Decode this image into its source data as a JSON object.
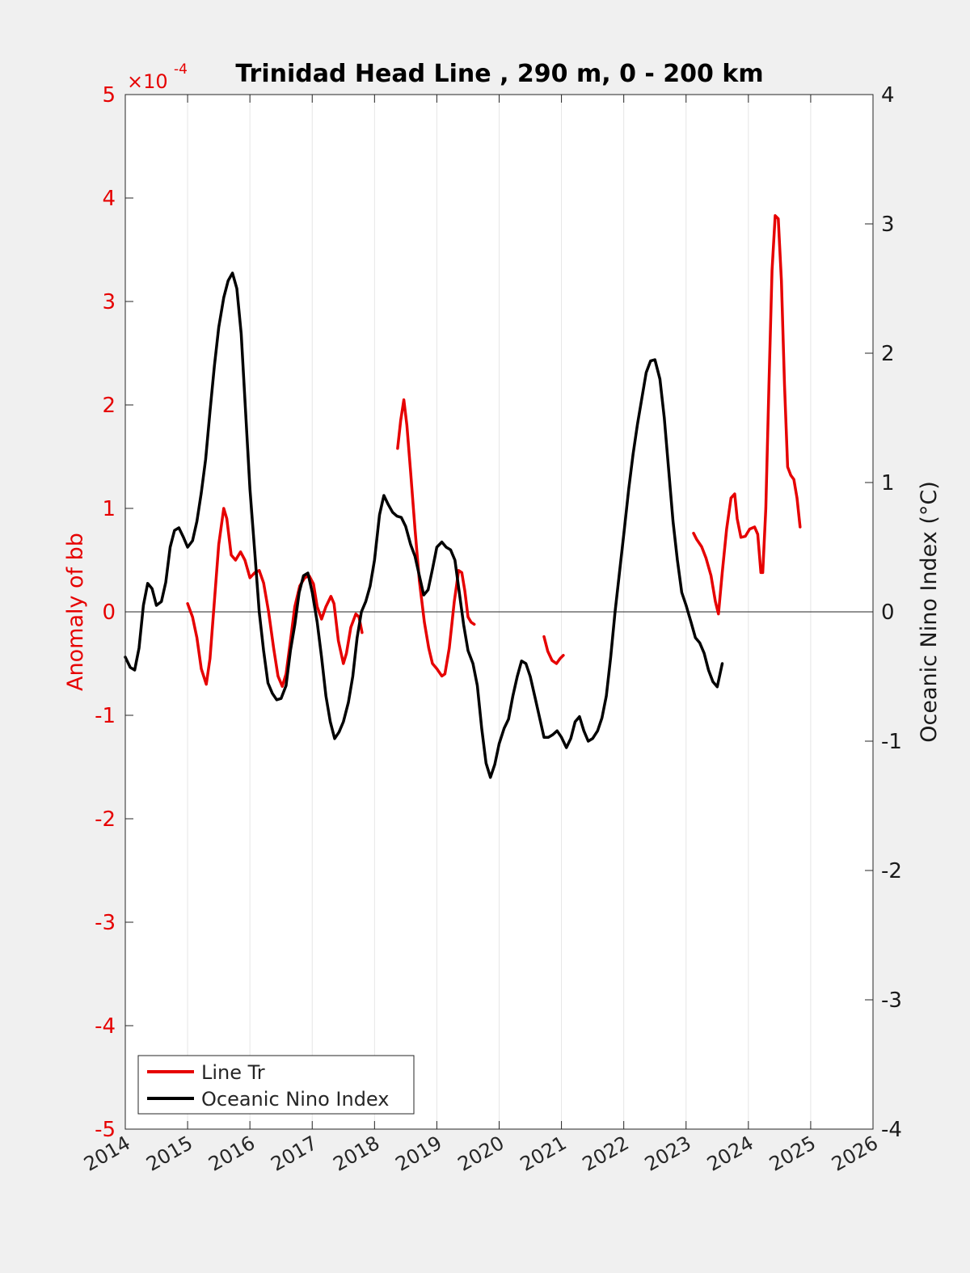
{
  "chart_data": {
    "type": "line",
    "title": "Trinidad Head Line , 290 m, 0 - 200 km",
    "ylabel_left": "Anomaly of bb",
    "ylabel_right": "Oceanic Nino Index (°C)",
    "left_exponent_base": "×10",
    "left_exponent": "-4",
    "xlim": [
      2014,
      2026
    ],
    "ylim_left": [
      -5,
      5
    ],
    "ylim_right": [
      -4,
      4
    ],
    "x_ticks": [
      "2014",
      "2015",
      "2016",
      "2017",
      "2018",
      "2019",
      "2020",
      "2021",
      "2022",
      "2023",
      "2024",
      "2025",
      "2026"
    ],
    "y_ticks_left": [
      "5",
      "4",
      "3",
      "2",
      "1",
      "0",
      "-1",
      "-2",
      "-3",
      "-4",
      "-5"
    ],
    "y_ticks_right": [
      "4",
      "3",
      "2",
      "1",
      "0",
      "-1",
      "-2",
      "-3",
      "-4"
    ],
    "grid": "vertical",
    "legend_position": "bottom-left",
    "colors": {
      "line_tr": "#e60000",
      "oni": "#000000",
      "left_axis": "#e60000",
      "right_axis": "#1a1a1a"
    },
    "series": [
      {
        "name": "Line Tr",
        "axis": "left",
        "color": "#e60000",
        "segments": [
          [
            [
              2015.0,
              0.08
            ],
            [
              2015.08,
              -0.05
            ],
            [
              2015.15,
              -0.25
            ],
            [
              2015.22,
              -0.55
            ],
            [
              2015.3,
              -0.7
            ],
            [
              2015.36,
              -0.45
            ],
            [
              2015.43,
              0.1
            ],
            [
              2015.5,
              0.65
            ],
            [
              2015.58,
              1.0
            ],
            [
              2015.63,
              0.9
            ],
            [
              2015.7,
              0.55
            ],
            [
              2015.77,
              0.5
            ],
            [
              2015.85,
              0.58
            ],
            [
              2015.92,
              0.5
            ],
            [
              2016.0,
              0.33
            ],
            [
              2016.08,
              0.38
            ],
            [
              2016.15,
              0.4
            ],
            [
              2016.22,
              0.28
            ],
            [
              2016.3,
              0.0
            ],
            [
              2016.38,
              -0.35
            ],
            [
              2016.45,
              -0.62
            ],
            [
              2016.52,
              -0.72
            ],
            [
              2016.58,
              -0.6
            ],
            [
              2016.65,
              -0.28
            ],
            [
              2016.72,
              0.05
            ],
            [
              2016.8,
              0.25
            ],
            [
              2016.88,
              0.33
            ],
            [
              2016.95,
              0.35
            ],
            [
              2017.02,
              0.27
            ],
            [
              2017.08,
              0.05
            ],
            [
              2017.15,
              -0.07
            ],
            [
              2017.22,
              0.05
            ],
            [
              2017.3,
              0.15
            ],
            [
              2017.35,
              0.08
            ],
            [
              2017.42,
              -0.28
            ],
            [
              2017.5,
              -0.5
            ],
            [
              2017.55,
              -0.4
            ],
            [
              2017.62,
              -0.15
            ],
            [
              2017.7,
              -0.02
            ],
            [
              2017.75,
              -0.05
            ],
            [
              2017.8,
              -0.2
            ]
          ],
          [
            [
              2018.37,
              1.58
            ],
            [
              2018.42,
              1.85
            ],
            [
              2018.47,
              2.05
            ],
            [
              2018.52,
              1.8
            ],
            [
              2018.58,
              1.35
            ],
            [
              2018.65,
              0.8
            ],
            [
              2018.72,
              0.3
            ],
            [
              2018.8,
              -0.1
            ],
            [
              2018.87,
              -0.35
            ],
            [
              2018.93,
              -0.5
            ],
            [
              2019.0,
              -0.55
            ],
            [
              2019.08,
              -0.62
            ],
            [
              2019.13,
              -0.6
            ],
            [
              2019.2,
              -0.35
            ],
            [
              2019.28,
              0.1
            ],
            [
              2019.35,
              0.4
            ],
            [
              2019.4,
              0.38
            ],
            [
              2019.45,
              0.2
            ],
            [
              2019.5,
              -0.05
            ],
            [
              2019.55,
              -0.1
            ],
            [
              2019.6,
              -0.12
            ]
          ],
          [
            [
              2020.72,
              -0.24
            ],
            [
              2020.78,
              -0.38
            ],
            [
              2020.85,
              -0.47
            ],
            [
              2020.92,
              -0.5
            ],
            [
              2020.98,
              -0.45
            ],
            [
              2021.03,
              -0.42
            ]
          ],
          [
            [
              2023.12,
              0.76
            ],
            [
              2023.17,
              0.7
            ],
            [
              2023.25,
              0.63
            ],
            [
              2023.32,
              0.52
            ],
            [
              2023.4,
              0.35
            ],
            [
              2023.47,
              0.1
            ],
            [
              2023.52,
              -0.02
            ],
            [
              2023.58,
              0.38
            ],
            [
              2023.65,
              0.8
            ],
            [
              2023.72,
              1.1
            ],
            [
              2023.78,
              1.14
            ],
            [
              2023.82,
              0.9
            ],
            [
              2023.88,
              0.72
            ],
            [
              2023.95,
              0.73
            ],
            [
              2024.02,
              0.8
            ],
            [
              2024.1,
              0.82
            ],
            [
              2024.15,
              0.75
            ],
            [
              2024.2,
              0.38
            ],
            [
              2024.23,
              0.38
            ],
            [
              2024.28,
              1.0
            ],
            [
              2024.33,
              2.2
            ],
            [
              2024.38,
              3.3
            ],
            [
              2024.43,
              3.83
            ],
            [
              2024.48,
              3.8
            ],
            [
              2024.53,
              3.2
            ],
            [
              2024.58,
              2.2
            ],
            [
              2024.63,
              1.4
            ],
            [
              2024.68,
              1.32
            ],
            [
              2024.73,
              1.28
            ],
            [
              2024.78,
              1.1
            ],
            [
              2024.83,
              0.82
            ]
          ]
        ]
      },
      {
        "name": "Oceanic Nino Index",
        "axis": "right",
        "color": "#000000",
        "segments": [
          [
            [
              2014.0,
              -0.35
            ],
            [
              2014.08,
              -0.43
            ],
            [
              2014.15,
              -0.45
            ],
            [
              2014.22,
              -0.28
            ],
            [
              2014.29,
              0.05
            ],
            [
              2014.36,
              0.22
            ],
            [
              2014.43,
              0.18
            ],
            [
              2014.5,
              0.05
            ],
            [
              2014.58,
              0.08
            ],
            [
              2014.65,
              0.23
            ],
            [
              2014.72,
              0.5
            ],
            [
              2014.79,
              0.63
            ],
            [
              2014.86,
              0.65
            ],
            [
              2014.93,
              0.58
            ],
            [
              2015.0,
              0.5
            ],
            [
              2015.08,
              0.55
            ],
            [
              2015.15,
              0.7
            ],
            [
              2015.22,
              0.92
            ],
            [
              2015.29,
              1.18
            ],
            [
              2015.36,
              1.55
            ],
            [
              2015.43,
              1.9
            ],
            [
              2015.5,
              2.2
            ],
            [
              2015.58,
              2.43
            ],
            [
              2015.65,
              2.56
            ],
            [
              2015.72,
              2.62
            ],
            [
              2015.79,
              2.5
            ],
            [
              2015.86,
              2.15
            ],
            [
              2015.93,
              1.55
            ],
            [
              2016.0,
              0.95
            ],
            [
              2016.08,
              0.45
            ],
            [
              2016.15,
              0.0
            ],
            [
              2016.22,
              -0.3
            ],
            [
              2016.29,
              -0.55
            ],
            [
              2016.36,
              -0.63
            ],
            [
              2016.43,
              -0.68
            ],
            [
              2016.5,
              -0.67
            ],
            [
              2016.58,
              -0.57
            ],
            [
              2016.65,
              -0.3
            ],
            [
              2016.72,
              -0.1
            ],
            [
              2016.79,
              0.15
            ],
            [
              2016.86,
              0.28
            ],
            [
              2016.93,
              0.3
            ],
            [
              2017.0,
              0.15
            ],
            [
              2017.08,
              -0.08
            ],
            [
              2017.15,
              -0.35
            ],
            [
              2017.22,
              -0.65
            ],
            [
              2017.29,
              -0.85
            ],
            [
              2017.36,
              -0.98
            ],
            [
              2017.43,
              -0.93
            ],
            [
              2017.5,
              -0.85
            ],
            [
              2017.58,
              -0.7
            ],
            [
              2017.65,
              -0.5
            ],
            [
              2017.72,
              -0.2
            ],
            [
              2017.79,
              0.0
            ],
            [
              2017.86,
              0.08
            ],
            [
              2017.93,
              0.2
            ],
            [
              2018.0,
              0.4
            ],
            [
              2018.08,
              0.75
            ],
            [
              2018.15,
              0.9
            ],
            [
              2018.22,
              0.83
            ],
            [
              2018.29,
              0.77
            ],
            [
              2018.36,
              0.74
            ],
            [
              2018.43,
              0.73
            ],
            [
              2018.5,
              0.66
            ],
            [
              2018.58,
              0.52
            ],
            [
              2018.65,
              0.43
            ],
            [
              2018.72,
              0.28
            ],
            [
              2018.79,
              0.13
            ],
            [
              2018.86,
              0.17
            ],
            [
              2018.93,
              0.33
            ],
            [
              2019.0,
              0.5
            ],
            [
              2019.08,
              0.54
            ],
            [
              2019.15,
              0.5
            ],
            [
              2019.22,
              0.48
            ],
            [
              2019.29,
              0.4
            ],
            [
              2019.36,
              0.15
            ],
            [
              2019.43,
              -0.1
            ],
            [
              2019.5,
              -0.3
            ],
            [
              2019.58,
              -0.4
            ],
            [
              2019.65,
              -0.57
            ],
            [
              2019.72,
              -0.9
            ],
            [
              2019.79,
              -1.17
            ],
            [
              2019.86,
              -1.28
            ],
            [
              2019.93,
              -1.18
            ],
            [
              2020.0,
              -1.02
            ],
            [
              2020.08,
              -0.9
            ],
            [
              2020.15,
              -0.83
            ],
            [
              2020.22,
              -0.65
            ],
            [
              2020.29,
              -0.5
            ],
            [
              2020.36,
              -0.38
            ],
            [
              2020.43,
              -0.4
            ],
            [
              2020.5,
              -0.5
            ],
            [
              2020.58,
              -0.67
            ],
            [
              2020.65,
              -0.82
            ],
            [
              2020.72,
              -0.97
            ],
            [
              2020.79,
              -0.97
            ],
            [
              2020.86,
              -0.95
            ],
            [
              2020.93,
              -0.92
            ],
            [
              2021.0,
              -0.97
            ],
            [
              2021.08,
              -1.05
            ],
            [
              2021.15,
              -0.98
            ],
            [
              2021.22,
              -0.85
            ],
            [
              2021.29,
              -0.81
            ],
            [
              2021.36,
              -0.92
            ],
            [
              2021.43,
              -1.0
            ],
            [
              2021.5,
              -0.98
            ],
            [
              2021.58,
              -0.92
            ],
            [
              2021.65,
              -0.82
            ],
            [
              2021.72,
              -0.65
            ],
            [
              2021.79,
              -0.35
            ],
            [
              2021.86,
              0.0
            ],
            [
              2021.93,
              0.3
            ],
            [
              2022.0,
              0.6
            ],
            [
              2022.08,
              0.95
            ],
            [
              2022.15,
              1.22
            ],
            [
              2022.22,
              1.45
            ],
            [
              2022.29,
              1.65
            ],
            [
              2022.36,
              1.85
            ],
            [
              2022.43,
              1.94
            ],
            [
              2022.5,
              1.95
            ],
            [
              2022.58,
              1.8
            ],
            [
              2022.65,
              1.5
            ],
            [
              2022.72,
              1.1
            ],
            [
              2022.79,
              0.7
            ],
            [
              2022.86,
              0.4
            ],
            [
              2022.93,
              0.15
            ],
            [
              2023.0,
              0.05
            ],
            [
              2023.08,
              -0.08
            ],
            [
              2023.15,
              -0.2
            ],
            [
              2023.22,
              -0.24
            ],
            [
              2023.29,
              -0.32
            ],
            [
              2023.36,
              -0.45
            ],
            [
              2023.43,
              -0.54
            ],
            [
              2023.5,
              -0.58
            ],
            [
              2023.58,
              -0.4
            ]
          ]
        ]
      }
    ]
  }
}
